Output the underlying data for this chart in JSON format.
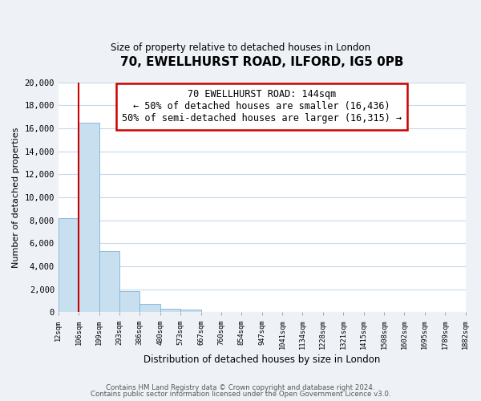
{
  "title": "70, EWELLHURST ROAD, ILFORD, IG5 0PB",
  "subtitle": "Size of property relative to detached houses in London",
  "xlabel": "Distribution of detached houses by size in London",
  "ylabel": "Number of detached properties",
  "bar_values": [
    8200,
    16500,
    5300,
    1800,
    750,
    300,
    200,
    0,
    0,
    0,
    0,
    0,
    0,
    0,
    0,
    0,
    0,
    0,
    0,
    0
  ],
  "bar_labels": [
    "12sqm",
    "106sqm",
    "199sqm",
    "293sqm",
    "386sqm",
    "480sqm",
    "573sqm",
    "667sqm",
    "760sqm",
    "854sqm",
    "947sqm",
    "1041sqm",
    "1134sqm",
    "1228sqm",
    "1321sqm",
    "1415sqm",
    "1508sqm",
    "1602sqm",
    "1695sqm",
    "1789sqm",
    "1882sqm"
  ],
  "bar_color": "#c8dff0",
  "bar_edge_color": "#7ab4d8",
  "property_line_x": 1.0,
  "annotation_text_line1": "70 EWELLHURST ROAD: 144sqm",
  "annotation_text_line2": "← 50% of detached houses are smaller (16,436)",
  "annotation_text_line3": "50% of semi-detached houses are larger (16,315) →",
  "annotation_box_color": "#ffffff",
  "annotation_box_edge_color": "#cc0000",
  "ylim": [
    0,
    20000
  ],
  "yticks": [
    0,
    2000,
    4000,
    6000,
    8000,
    10000,
    12000,
    14000,
    16000,
    18000,
    20000
  ],
  "footnote1": "Contains HM Land Registry data © Crown copyright and database right 2024.",
  "footnote2": "Contains public sector information licensed under the Open Government Licence v3.0.",
  "bg_color": "#eef2f6",
  "plot_bg_color": "#ffffff",
  "grid_color": "#c8d8e8"
}
